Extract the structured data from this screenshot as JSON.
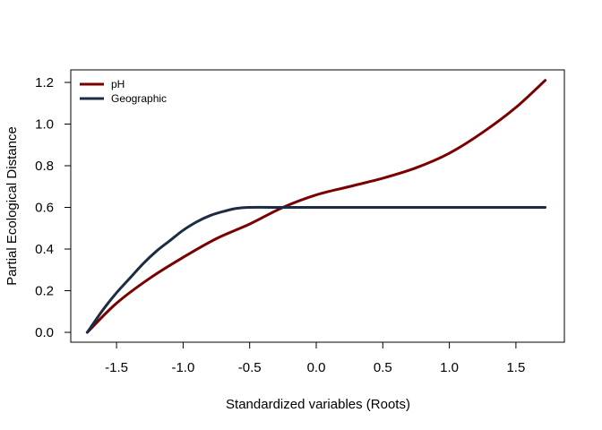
{
  "chart_data": {
    "type": "line",
    "title": "",
    "xlabel": "Standardized variables (Roots)",
    "ylabel": "Partial Ecological Distance",
    "xlim": [
      -1.73,
      1.73
    ],
    "ylim": [
      0.0,
      1.2
    ],
    "x_ticks": [
      -1.5,
      -1.0,
      -0.5,
      0.0,
      0.5,
      1.0,
      1.5
    ],
    "x_tick_labels": [
      "-1.5",
      "-1.0",
      "-0.5",
      "0.0",
      "0.5",
      "1.0",
      "1.5"
    ],
    "y_ticks": [
      0.0,
      0.2,
      0.4,
      0.6,
      0.8,
      1.0,
      1.2
    ],
    "y_tick_labels": [
      "0.0",
      "0.2",
      "0.4",
      "0.6",
      "0.8",
      "1.0",
      "1.2"
    ],
    "grid": false,
    "legend": "top-left",
    "series": [
      {
        "name": "pH",
        "color": "#7a0000",
        "x": [
          -1.72,
          -1.5,
          -1.25,
          -1.0,
          -0.75,
          -0.5,
          -0.25,
          0.0,
          0.25,
          0.5,
          0.75,
          1.0,
          1.25,
          1.5,
          1.72
        ],
        "y": [
          0.0,
          0.14,
          0.26,
          0.36,
          0.45,
          0.52,
          0.6,
          0.66,
          0.7,
          0.74,
          0.79,
          0.86,
          0.96,
          1.08,
          1.21
        ]
      },
      {
        "name": "Geographic",
        "color": "#1c2c44",
        "x": [
          -1.72,
          -1.6,
          -1.5,
          -1.4,
          -1.3,
          -1.2,
          -1.1,
          -1.0,
          -0.9,
          -0.8,
          -0.7,
          -0.6,
          -0.5,
          -0.25,
          0.0,
          0.5,
          1.0,
          1.5,
          1.72
        ],
        "y": [
          0.0,
          0.11,
          0.19,
          0.26,
          0.33,
          0.39,
          0.44,
          0.49,
          0.53,
          0.56,
          0.58,
          0.595,
          0.6,
          0.6,
          0.6,
          0.6,
          0.6,
          0.6,
          0.6
        ]
      }
    ]
  }
}
